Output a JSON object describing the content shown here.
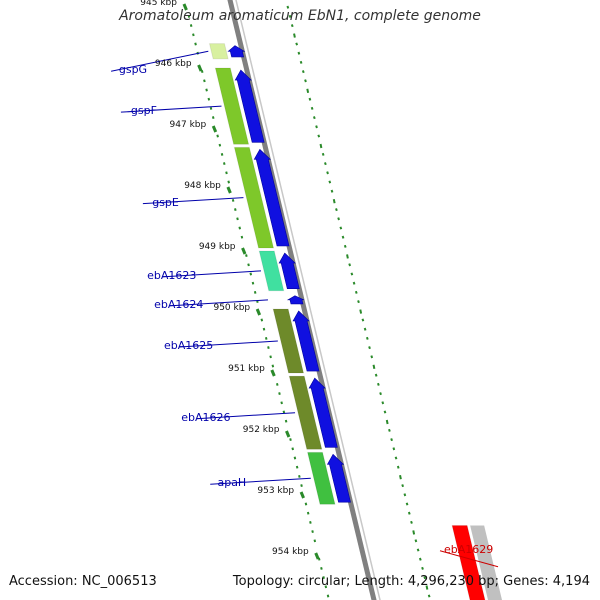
{
  "title": "Aromatoleum aromaticum EbN1, complete genome",
  "footer": {
    "accession": "Accession: NC_006513",
    "summary": "Topology: circular; Length: 4,296,230 bp; Genes: 4,194"
  },
  "ticks": [
    {
      "label": "945 kbp",
      "kbp": 945
    },
    {
      "label": "946 kbp",
      "kbp": 946
    },
    {
      "label": "947 kbp",
      "kbp": 947
    },
    {
      "label": "948 kbp",
      "kbp": 948
    },
    {
      "label": "949 kbp",
      "kbp": 949
    },
    {
      "label": "950 kbp",
      "kbp": 950
    },
    {
      "label": "951 kbp",
      "kbp": 951
    },
    {
      "label": "952 kbp",
      "kbp": 952
    },
    {
      "label": "953 kbp",
      "kbp": 953
    },
    {
      "label": "954 kbp",
      "kbp": 954
    }
  ],
  "genes": [
    {
      "name": "gspG",
      "start_kbp": 945.65,
      "end_kbp": 945.9,
      "strand": "+",
      "color": "#1010e0",
      "bar_color": "#d8f0a0"
    },
    {
      "name": "gspF",
      "start_kbp": 946.05,
      "end_kbp": 947.3,
      "strand": "+",
      "color": "#1010e0",
      "bar_color": "#7ec82a"
    },
    {
      "name": "gspE",
      "start_kbp": 947.35,
      "end_kbp": 949.0,
      "strand": "+",
      "color": "#1010e0",
      "bar_color": "#7ec82a"
    },
    {
      "name": "ebA1623",
      "start_kbp": 949.05,
      "end_kbp": 949.7,
      "strand": "+",
      "color": "#1010e0",
      "bar_color": "#40e0a0"
    },
    {
      "name": "ebA1624",
      "start_kbp": 949.75,
      "end_kbp": 949.95,
      "strand": "+",
      "color": "#1010e0",
      "bar_color": "#ffffff"
    },
    {
      "name": "ebA1625",
      "start_kbp": 950.0,
      "end_kbp": 951.05,
      "strand": "+",
      "color": "#1010e0",
      "bar_color": "#6e8a2a"
    },
    {
      "name": "ebA1626",
      "start_kbp": 951.1,
      "end_kbp": 952.3,
      "strand": "+",
      "color": "#1010e0",
      "bar_color": "#6e8a2a"
    },
    {
      "name": "apaH",
      "start_kbp": 952.35,
      "end_kbp": 953.2,
      "strand": "+",
      "color": "#1010e0",
      "bar_color": "#40c040"
    },
    {
      "name": "ebA1629",
      "start_kbp": 953.55,
      "end_kbp": 954.9,
      "strand": "-",
      "color": "#ff0000",
      "bar_color": "#c0c0c0"
    }
  ],
  "colors": {
    "backbone": "#808080",
    "tick": "#2a8a2a",
    "gene_forward": "#1010e0",
    "gene_reverse": "#ff0000",
    "label_forward": "#0000aa",
    "label_reverse": "#cc0000"
  }
}
